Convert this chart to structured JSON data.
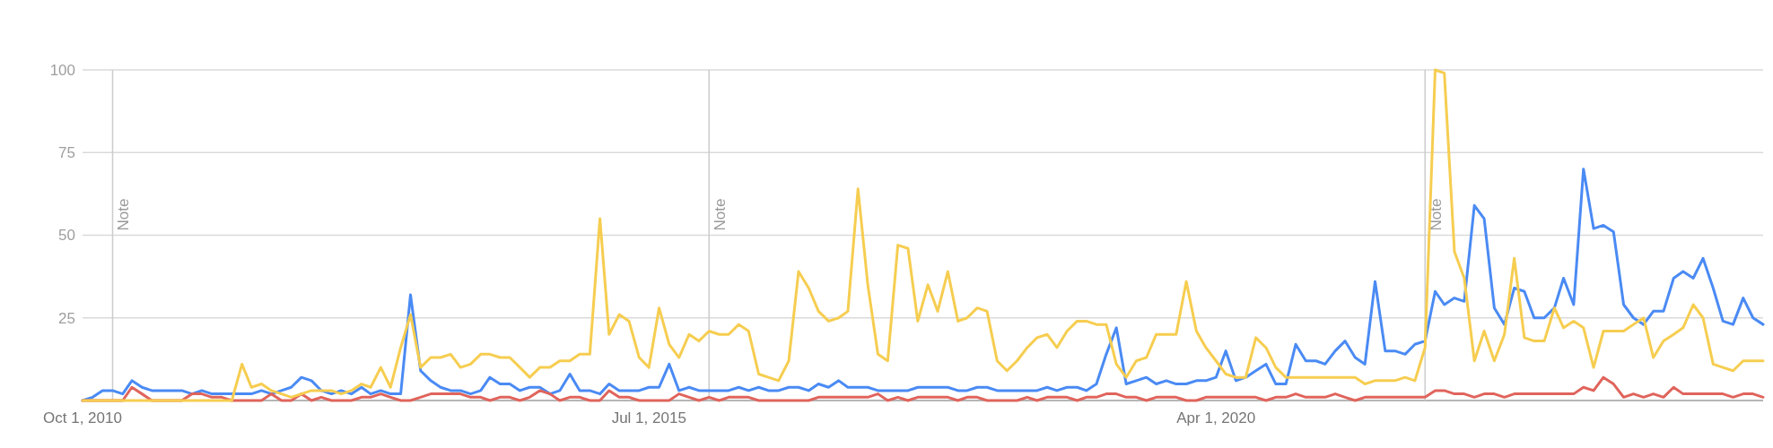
{
  "chart_data": {
    "type": "line",
    "x": [
      "2010-10",
      "2010-11",
      "2010-12",
      "2011-01",
      "2011-02",
      "2011-03",
      "2011-04",
      "2011-05",
      "2011-06",
      "2011-07",
      "2011-08",
      "2011-09",
      "2011-10",
      "2011-11",
      "2011-12",
      "2012-01",
      "2012-02",
      "2012-03",
      "2012-04",
      "2012-05",
      "2012-06",
      "2012-07",
      "2012-08",
      "2012-09",
      "2012-10",
      "2012-11",
      "2012-12",
      "2013-01",
      "2013-02",
      "2013-03",
      "2013-04",
      "2013-05",
      "2013-06",
      "2013-07",
      "2013-08",
      "2013-09",
      "2013-10",
      "2013-11",
      "2013-12",
      "2014-01",
      "2014-02",
      "2014-03",
      "2014-04",
      "2014-05",
      "2014-06",
      "2014-07",
      "2014-08",
      "2014-09",
      "2014-10",
      "2014-11",
      "2014-12",
      "2015-01",
      "2015-02",
      "2015-03",
      "2015-04",
      "2015-05",
      "2015-06",
      "2015-07",
      "2015-08",
      "2015-09",
      "2015-10",
      "2015-11",
      "2015-12",
      "2016-01",
      "2016-02",
      "2016-03",
      "2016-04",
      "2016-05",
      "2016-06",
      "2016-07",
      "2016-08",
      "2016-09",
      "2016-10",
      "2016-11",
      "2016-12",
      "2017-01",
      "2017-02",
      "2017-03",
      "2017-04",
      "2017-05",
      "2017-06",
      "2017-07",
      "2017-08",
      "2017-09",
      "2017-10",
      "2017-11",
      "2017-12",
      "2018-01",
      "2018-02",
      "2018-03",
      "2018-04",
      "2018-05",
      "2018-06",
      "2018-07",
      "2018-08",
      "2018-09",
      "2018-10",
      "2018-11",
      "2018-12",
      "2019-01",
      "2019-02",
      "2019-03",
      "2019-04",
      "2019-05",
      "2019-06",
      "2019-07",
      "2019-08",
      "2019-09",
      "2019-10",
      "2019-11",
      "2019-12",
      "2020-01",
      "2020-02",
      "2020-03",
      "2020-04",
      "2020-05",
      "2020-06",
      "2020-07",
      "2020-08",
      "2020-09",
      "2020-10",
      "2020-11",
      "2020-12",
      "2021-01",
      "2021-02",
      "2021-03",
      "2021-04",
      "2021-05",
      "2021-06",
      "2021-07",
      "2021-08",
      "2021-09",
      "2021-10",
      "2021-11",
      "2021-12",
      "2022-01",
      "2022-02",
      "2022-03",
      "2022-04",
      "2022-05",
      "2022-06",
      "2022-07",
      "2022-08",
      "2022-09",
      "2022-10",
      "2022-11",
      "2022-12",
      "2023-01",
      "2023-02",
      "2023-03",
      "2023-04",
      "2023-05",
      "2023-06",
      "2023-07",
      "2023-08",
      "2023-09",
      "2023-10",
      "2023-11",
      "2023-12",
      "2024-01",
      "2024-02",
      "2024-03",
      "2024-04",
      "2024-05",
      "2024-06",
      "2024-07",
      "2024-08",
      "2024-09",
      "2024-10",
      "2024-11"
    ],
    "series": [
      {
        "color": "#4a8af4",
        "values": [
          0,
          1,
          3,
          3,
          2,
          6,
          4,
          3,
          3,
          3,
          3,
          2,
          3,
          2,
          2,
          2,
          2,
          2,
          3,
          2,
          3,
          4,
          7,
          6,
          3,
          2,
          3,
          2,
          4,
          2,
          3,
          2,
          2,
          32,
          9,
          6,
          4,
          3,
          3,
          2,
          3,
          7,
          5,
          5,
          3,
          4,
          4,
          2,
          3,
          8,
          3,
          3,
          2,
          5,
          3,
          3,
          3,
          4,
          4,
          11,
          3,
          4,
          3,
          3,
          3,
          3,
          4,
          3,
          4,
          3,
          3,
          4,
          4,
          3,
          5,
          4,
          6,
          4,
          4,
          4,
          3,
          3,
          3,
          3,
          4,
          4,
          4,
          4,
          3,
          3,
          4,
          4,
          3,
          3,
          3,
          3,
          3,
          4,
          3,
          4,
          4,
          3,
          5,
          14,
          22,
          5,
          6,
          7,
          5,
          6,
          5,
          5,
          6,
          6,
          7,
          15,
          6,
          7,
          9,
          11,
          5,
          5,
          17,
          12,
          12,
          11,
          15,
          18,
          13,
          11,
          36,
          15,
          15,
          14,
          17,
          18,
          33,
          29,
          31,
          30,
          59,
          55,
          28,
          23,
          34,
          33,
          25,
          25,
          28,
          37,
          29,
          70,
          52,
          53,
          51,
          29,
          25,
          23,
          27,
          27,
          37,
          39,
          37,
          43,
          34,
          24,
          23,
          31,
          25,
          23
        ]
      },
      {
        "color": "#e0645c",
        "values": [
          0,
          0,
          0,
          0,
          0,
          4,
          2,
          0,
          0,
          0,
          0,
          2,
          2,
          1,
          1,
          0,
          0,
          0,
          0,
          2,
          0,
          0,
          2,
          0,
          1,
          0,
          0,
          0,
          1,
          1,
          2,
          1,
          0,
          0,
          1,
          2,
          2,
          2,
          2,
          1,
          1,
          0,
          1,
          1,
          0,
          1,
          3,
          2,
          0,
          1,
          1,
          0,
          0,
          3,
          1,
          1,
          0,
          0,
          0,
          0,
          2,
          1,
          0,
          1,
          0,
          1,
          1,
          1,
          0,
          0,
          0,
          0,
          0,
          0,
          1,
          1,
          1,
          1,
          1,
          1,
          2,
          0,
          1,
          0,
          1,
          1,
          1,
          1,
          0,
          1,
          1,
          0,
          0,
          0,
          0,
          1,
          0,
          1,
          1,
          1,
          0,
          1,
          1,
          2,
          2,
          1,
          1,
          0,
          1,
          1,
          1,
          0,
          0,
          1,
          1,
          1,
          1,
          1,
          1,
          0,
          1,
          1,
          2,
          1,
          1,
          1,
          2,
          1,
          0,
          1,
          1,
          1,
          1,
          1,
          1,
          1,
          3,
          3,
          2,
          2,
          1,
          2,
          2,
          1,
          2,
          2,
          2,
          2,
          2,
          2,
          2,
          4,
          3,
          7,
          5,
          1,
          2,
          1,
          2,
          1,
          4,
          2,
          2,
          2,
          2,
          2,
          1,
          2,
          2,
          1
        ]
      },
      {
        "color": "#f6cd50",
        "values": [
          0,
          0,
          0,
          0,
          0,
          0,
          0,
          0,
          0,
          0,
          0,
          0,
          0,
          0,
          0,
          0,
          11,
          4,
          5,
          3,
          2,
          1,
          2,
          3,
          3,
          3,
          2,
          3,
          5,
          4,
          10,
          4,
          16,
          26,
          10,
          13,
          13,
          14,
          10,
          11,
          14,
          14,
          13,
          13,
          10,
          7,
          10,
          10,
          12,
          12,
          14,
          14,
          55,
          20,
          26,
          24,
          13,
          10,
          28,
          17,
          13,
          20,
          18,
          21,
          20,
          20,
          23,
          21,
          8,
          7,
          6,
          12,
          39,
          34,
          27,
          24,
          25,
          27,
          64,
          35,
          14,
          12,
          47,
          46,
          24,
          35,
          27,
          39,
          24,
          25,
          28,
          27,
          12,
          9,
          12,
          16,
          19,
          20,
          16,
          21,
          24,
          24,
          23,
          23,
          11,
          7,
          12,
          13,
          20,
          20,
          20,
          36,
          21,
          16,
          12,
          8,
          7,
          7,
          19,
          16,
          10,
          7,
          7,
          7,
          7,
          7,
          7,
          7,
          7,
          5,
          6,
          6,
          6,
          7,
          6,
          16,
          100,
          99,
          45,
          37,
          12,
          21,
          12,
          20,
          43,
          19,
          18,
          18,
          28,
          22,
          24,
          22,
          10,
          21,
          21,
          21,
          23,
          25,
          13,
          18,
          20,
          22,
          29,
          25,
          11,
          10,
          9,
          12,
          12,
          12
        ]
      }
    ],
    "xlim": [
      "2010-10-01",
      "2024-11-01"
    ],
    "xticks": [
      {
        "value": "2010-10-01",
        "label": "Oct 1, 2010"
      },
      {
        "value": "2015-07-01",
        "label": "Jul 1, 2015"
      },
      {
        "value": "2020-04-01",
        "label": "Apr 1, 2020"
      }
    ],
    "ylim": [
      0,
      100
    ],
    "yticks": [
      {
        "value": 0,
        "label": null
      },
      25,
      50,
      75,
      100
    ],
    "grid": "y",
    "ref_lines": [
      {
        "axis": "x",
        "value": "2011-01-01",
        "label": "Note"
      },
      {
        "axis": "x",
        "value": "2016-01-01",
        "label": "Note"
      },
      {
        "axis": "x",
        "value": "2022-01-01",
        "label": "Note"
      }
    ]
  }
}
